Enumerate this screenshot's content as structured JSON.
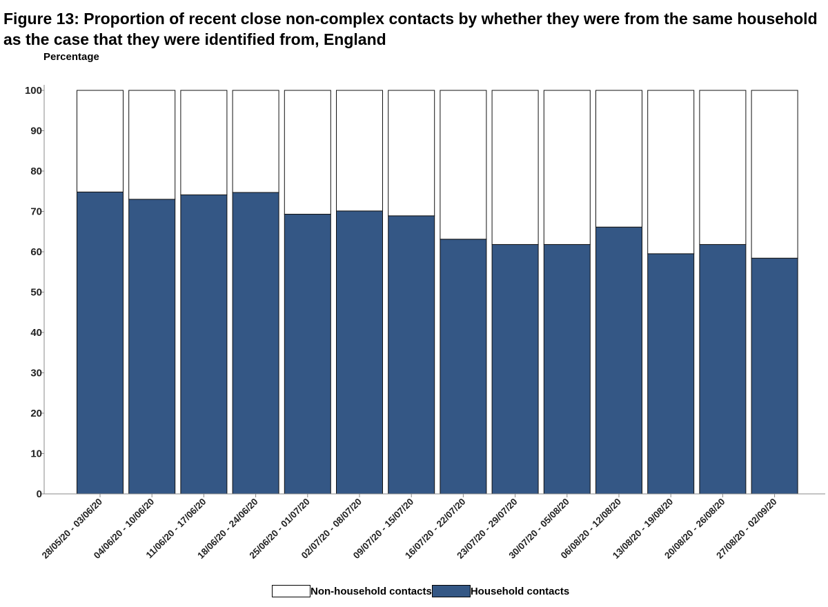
{
  "title": "Figure 13: Proportion of recent close non-complex contacts by whether they were from the same household as the case that they were identified from, England",
  "colors": {
    "household": "#345785",
    "non_household": "#ffffff",
    "outline": "#111111",
    "axis": "#888888"
  },
  "chart_data": {
    "type": "bar",
    "stacked": true,
    "title": "Figure 13: Proportion of recent close non-complex contacts by whether they were from the same household as the case that they were identified from, England",
    "xlabel": "",
    "ylabel": "Percentage",
    "ylim": [
      0,
      100
    ],
    "yticks": [
      0,
      10,
      20,
      30,
      40,
      50,
      60,
      70,
      80,
      90,
      100
    ],
    "grid": false,
    "legend_position": "bottom",
    "categories": [
      "28/05/20 - 03/06/20",
      "04/06/20 - 10/06/20",
      "11/06/20 - 17/06/20",
      "18/06/20 - 24/06/20",
      "25/06/20 - 01/07/20",
      "02/07/20 - 08/07/20",
      "09/07/20 - 15/07/20",
      "16/07/20 - 22/07/20",
      "23/07/20 - 29/07/20",
      "30/07/20 - 05/08/20",
      "06/08/20 - 12/08/20",
      "13/08/20 - 19/08/20",
      "20/08/20 - 26/08/20",
      "27/08/20 - 02/09/20"
    ],
    "series": [
      {
        "name": "Household contacts",
        "values": [
          74.8,
          73.0,
          74.1,
          74.7,
          69.3,
          70.1,
          68.9,
          63.1,
          61.8,
          61.8,
          66.1,
          59.5,
          61.8,
          58.4
        ]
      },
      {
        "name": "Non-household contacts",
        "values": [
          25.2,
          27.0,
          25.9,
          25.3,
          30.7,
          29.9,
          31.1,
          36.9,
          38.2,
          38.2,
          33.9,
          40.5,
          38.2,
          41.6
        ]
      }
    ]
  },
  "legend": {
    "non_household_label": "Non-household contacts",
    "household_label": "Household contacts"
  }
}
